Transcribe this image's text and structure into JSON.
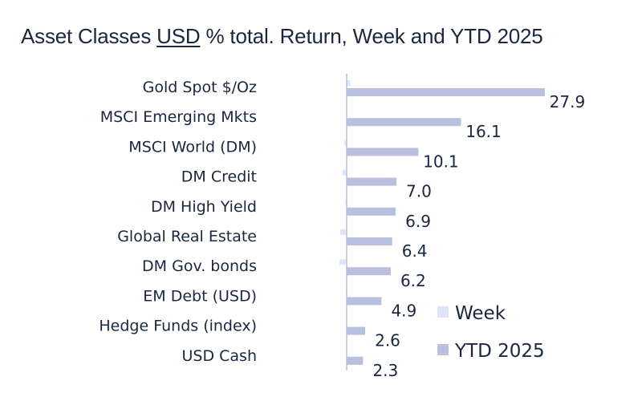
{
  "title": {
    "part1": "Asset Classes ",
    "usd": "USD",
    "part2": " % total. Return, Week and YTD 2025"
  },
  "colors": {
    "week": "#dde5f7",
    "ytd": "#b9c0df",
    "axis": "#b8c2da",
    "text": "#1a2740"
  },
  "chart_data": {
    "type": "bar",
    "orientation": "horizontal",
    "title": "Asset Classes USD % total. Return, Week and YTD 2025",
    "categories": [
      "Gold Spot   $/Oz",
      "MSCI Emerging Mkts",
      "MSCI World (DM)",
      "DM Credit",
      "DM High Yield",
      "Global Real Estate",
      "DM Gov. bonds",
      "EM Debt (USD)",
      "Hedge Funds (index)",
      "USD Cash"
    ],
    "series": [
      {
        "name": "Week",
        "values": [
          0.5,
          0.0,
          -0.3,
          -0.6,
          -0.2,
          -0.9,
          -1.0,
          -0.1,
          0.0,
          0.0
        ]
      },
      {
        "name": "YTD 2025",
        "values": [
          27.9,
          16.1,
          10.1,
          7.0,
          6.9,
          6.4,
          6.2,
          4.9,
          2.6,
          2.3
        ]
      }
    ],
    "data_labels": [
      "27.9",
      "16.1",
      "10.1",
      "7.0",
      "6.9",
      "6.4",
      "6.2",
      "4.9",
      "2.6",
      "2.3"
    ],
    "legend_position": "bottom-right",
    "grid": false
  }
}
